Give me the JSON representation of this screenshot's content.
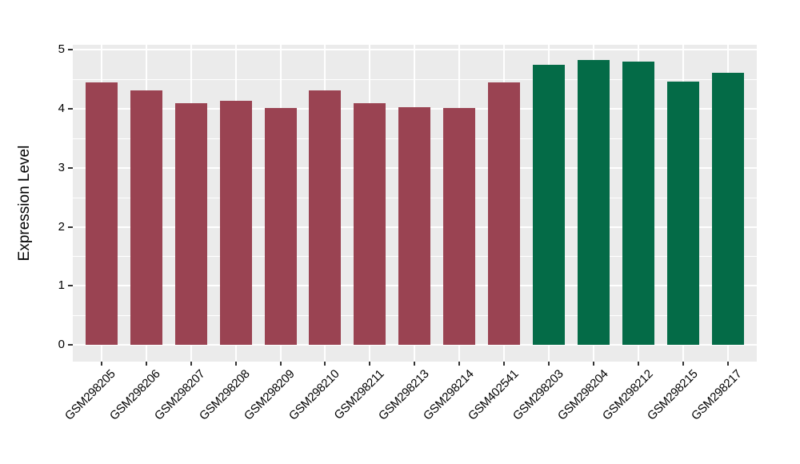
{
  "chart_data": {
    "type": "bar",
    "title": "",
    "xlabel": "",
    "ylabel": "Expression Level",
    "categories": [
      "GSM298205",
      "GSM298206",
      "GSM298207",
      "GSM298208",
      "GSM298209",
      "GSM298210",
      "GSM298211",
      "GSM298213",
      "GSM298214",
      "GSM402541",
      "GSM298203",
      "GSM298204",
      "GSM298212",
      "GSM298215",
      "GSM298217"
    ],
    "values": [
      4.45,
      4.31,
      4.1,
      4.14,
      4.02,
      4.31,
      4.1,
      4.03,
      4.02,
      4.45,
      4.75,
      4.83,
      4.8,
      4.46,
      4.61
    ],
    "bar_colors": [
      "#9A4352",
      "#9A4352",
      "#9A4352",
      "#9A4352",
      "#9A4352",
      "#9A4352",
      "#9A4352",
      "#9A4352",
      "#9A4352",
      "#9A4352",
      "#046B47",
      "#046B47",
      "#046B47",
      "#046B47",
      "#046B47"
    ],
    "group_colors": {
      "group1_red": "#9A4352",
      "group2_green": "#046B47"
    },
    "ylim": [
      0,
      5
    ],
    "yticks": [
      "0",
      "1",
      "2",
      "3",
      "4",
      "5"
    ],
    "yticks_minor": [
      0.5,
      1.5,
      2.5,
      3.5,
      4.5
    ],
    "grid": "on",
    "legend": "none",
    "panel_background": "#EBEBEB",
    "gridline_color": "#FFFFFF",
    "tick_mark_color": "#333333",
    "text_color": "#000000"
  }
}
